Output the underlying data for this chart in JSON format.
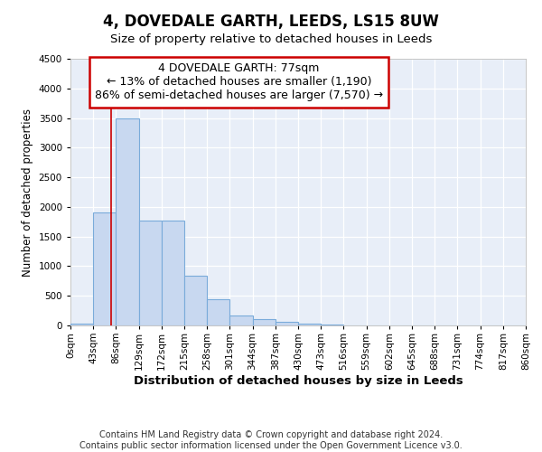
{
  "title1": "4, DOVEDALE GARTH, LEEDS, LS15 8UW",
  "title2": "Size of property relative to detached houses in Leeds",
  "xlabel": "Distribution of detached houses by size in Leeds",
  "ylabel": "Number of detached properties",
  "property_size": 77,
  "bin_width": 43,
  "bin_starts": [
    0,
    43,
    86,
    129,
    172,
    215,
    258,
    301,
    344,
    387,
    430,
    473,
    516,
    559,
    602,
    645,
    688,
    731,
    774,
    817
  ],
  "bar_heights": [
    30,
    1900,
    3500,
    1775,
    1775,
    840,
    440,
    170,
    100,
    65,
    35,
    20,
    0,
    0,
    0,
    0,
    0,
    0,
    0,
    0
  ],
  "bar_color": "#c8d8f0",
  "bar_edgecolor": "#7aabda",
  "vline_color": "#cc0000",
  "annotation_text": "4 DOVEDALE GARTH: 77sqm\n← 13% of detached houses are smaller (1,190)\n86% of semi-detached houses are larger (7,570) →",
  "annotation_box_edgecolor": "#cc0000",
  "annotation_box_fill": "#ffffff",
  "ylim": [
    0,
    4500
  ],
  "yticks": [
    0,
    500,
    1000,
    1500,
    2000,
    2500,
    3000,
    3500,
    4000,
    4500
  ],
  "xtick_labels": [
    "0sqm",
    "43sqm",
    "86sqm",
    "129sqm",
    "172sqm",
    "215sqm",
    "258sqm",
    "301sqm",
    "344sqm",
    "387sqm",
    "430sqm",
    "473sqm",
    "516sqm",
    "559sqm",
    "602sqm",
    "645sqm",
    "688sqm",
    "731sqm",
    "774sqm",
    "817sqm",
    "860sqm"
  ],
  "background_color": "#e8eef8",
  "footer_line1": "Contains HM Land Registry data © Crown copyright and database right 2024.",
  "footer_line2": "Contains public sector information licensed under the Open Government Licence v3.0.",
  "title1_fontsize": 12,
  "title2_fontsize": 9.5,
  "xlabel_fontsize": 9.5,
  "ylabel_fontsize": 8.5,
  "tick_fontsize": 7.5,
  "annotation_fontsize": 9,
  "footer_fontsize": 7
}
